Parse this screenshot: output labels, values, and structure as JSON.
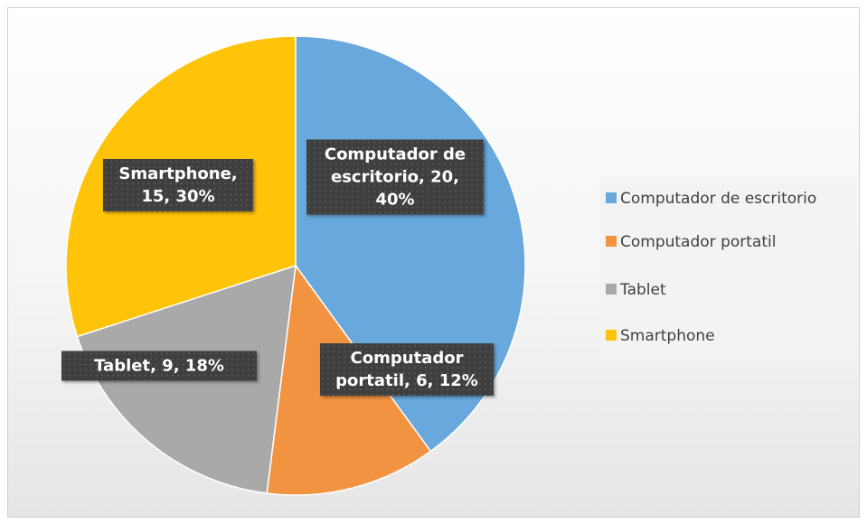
{
  "chart_data": {
    "type": "pie",
    "categories": [
      "Computador de escritorio",
      "Computador portatil",
      "Tablet",
      "Smartphone"
    ],
    "values": [
      20,
      6,
      9,
      15
    ],
    "value_labels": [
      "Computador de escritorio, 20, 40%",
      "Computador portatil, 6, 12%",
      "Tablet, 9, 18%",
      "Smartphone, 15, 30%"
    ],
    "colors": [
      "#69a8dc",
      "#f19340",
      "#a9a9a9",
      "#ffc30a"
    ],
    "legend": "right"
  }
}
